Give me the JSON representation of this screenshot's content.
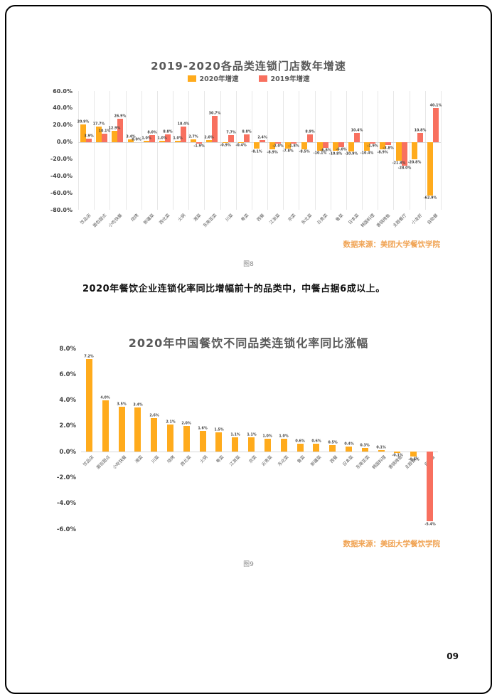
{
  "page": {
    "number": "09",
    "body_text": "2020年餐饮企业连锁化率同比增幅前十的品类中，中餐占据6成以上。"
  },
  "colors": {
    "series_2020_orange": "#FFAB1C",
    "series_2019_red": "#F8705F",
    "gridline": "#E7E7E7",
    "zero_axis": "#D9D9D9",
    "title_gray": "#595959",
    "source_orange": "#F0A353"
  },
  "chart_data": [
    {
      "type": "bar",
      "title": "2019-2020各品类连锁门店数年增速",
      "legend": [
        {
          "label": "2020年增速",
          "color": "#FFAB1C"
        },
        {
          "label": "2019年增速",
          "color": "#F8705F"
        }
      ],
      "legend_position": "top",
      "grid": "vertical-only",
      "ylim": [
        -80,
        60
      ],
      "yticks": [
        "60.0%",
        "40.0%",
        "20.0%",
        "0.0%",
        "-20.0%",
        "-40.0%",
        "-60.0%",
        "-80.0%"
      ],
      "categories": [
        "饮品店",
        "面包甜点",
        "小吃快餐",
        "烧烤",
        "新疆菜",
        "西北菜",
        "火锅",
        "湘菜",
        "东南亚菜",
        "川菜",
        "粤菜",
        "西餐",
        "江浙菜",
        "京菜",
        "东北菜",
        "云贵菜",
        "鲁菜",
        "日本菜",
        "韩国料理",
        "香锅烤鱼",
        "主题餐厅",
        "小龙虾",
        "自助餐"
      ],
      "series": [
        {
          "name": "2020年增速",
          "color": "#FFAB1C",
          "values": [
            20.9,
            17.7,
            12.9,
            3.4,
            1.0,
            1.0,
            1.0,
            2.7,
            2.0,
            -0.9,
            -0.4,
            -8.1,
            -8.9,
            -7.8,
            -8.5,
            -10.1,
            -10.8,
            -10.9,
            -10.4,
            -8.9,
            -21.8,
            -20.8,
            -62.9
          ]
        },
        {
          "name": "2019年增速",
          "color": "#F8705F",
          "values": [
            3.9,
            10.1,
            26.9,
            0.0,
            8.0,
            8.8,
            18.4,
            -1.9,
            30.7,
            7.7,
            8.8,
            2.4,
            -2.0,
            -1.8,
            8.9,
            -6.8,
            -6.0,
            10.4,
            -1.9,
            -3.8,
            -28.0,
            10.8,
            40.1
          ]
        }
      ],
      "source": "数据来源：美团大学餐饮学院",
      "caption": "图8"
    },
    {
      "type": "bar",
      "title": "2020年中国餐饮不同品类连锁化率同比涨幅",
      "grid": "none",
      "ylim": [
        -6,
        8
      ],
      "yticks": [
        "8.0%",
        "6.0%",
        "4.0%",
        "2.0%",
        "0.0%",
        "-2.0%",
        "-4.0%",
        "-6.0%"
      ],
      "categories": [
        "饮品店",
        "面包甜点",
        "小吃快餐",
        "湘菜",
        "川菜",
        "烧烤",
        "西北菜",
        "火锅",
        "粤菜",
        "江浙菜",
        "京菜",
        "云贵菜",
        "东北菜",
        "鲁菜",
        "新疆菜",
        "西餐",
        "日本菜",
        "东南亚菜",
        "韩国料理",
        "香锅烤鱼",
        "主题餐厅",
        "自助餐"
      ],
      "values": [
        7.2,
        4.0,
        3.5,
        3.4,
        2.6,
        2.1,
        2.0,
        1.6,
        1.5,
        1.1,
        1.1,
        1.0,
        1.0,
        0.6,
        0.6,
        0.5,
        0.4,
        0.3,
        0.1,
        -0.1,
        -0.4,
        -5.4
      ],
      "bar_color": "#FFAB1C",
      "last_bar_color": "#F8705F",
      "source": "数据来源：美团大学餐饮学院",
      "caption": "图9"
    }
  ]
}
